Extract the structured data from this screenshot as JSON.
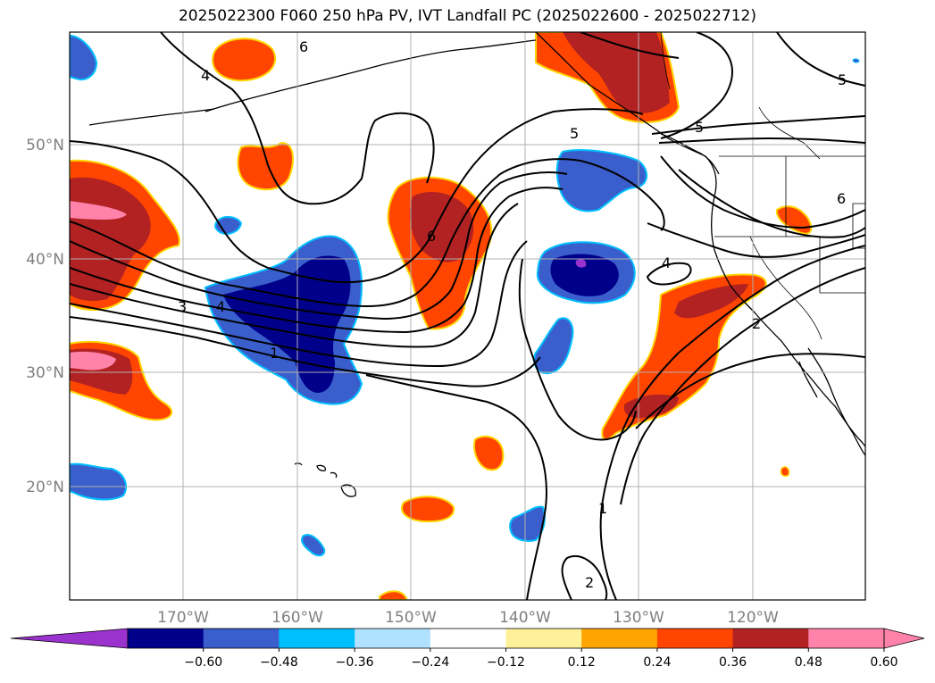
{
  "title": "2025022300 F060 250 hPa PV, IVT Landfall PC (2025022600 - 2025022712)",
  "lat_labels": [
    "50°N",
    "40°N",
    "30°N",
    "20°N"
  ],
  "lon_labels": [
    "170°W",
    "160°W",
    "150°W",
    "140°W",
    "130°W",
    "120°W"
  ],
  "colorbar": {
    "ticks": [
      "−0.60",
      "−0.48",
      "−0.36",
      "−0.24",
      "−0.12",
      "0.12",
      "0.24",
      "0.36",
      "0.48",
      "0.60"
    ],
    "colors": [
      "#9a32cd",
      "#00008b",
      "#3a5fcd",
      "#00bfff",
      "#b0e2ff",
      "#ffffff",
      "#fff09a",
      "#ffa500",
      "#ff4500",
      "#b22222",
      "#ff82ab",
      "#ff82ab"
    ]
  },
  "contour_labels": [
    "1",
    "2",
    "3",
    "4",
    "4",
    "5",
    "5",
    "5",
    "6",
    "6",
    "6",
    "1",
    "2",
    "4"
  ],
  "fill_colors": {
    "pos_light": "#ff4500",
    "pos_mid": "#b22222",
    "pos_high": "#ff82ab",
    "pos_edge": "#ffd700",
    "neg_light": "#3a5fcd",
    "neg_mid": "#00008b",
    "neg_high": "#9a32cd",
    "neg_edge": "#00bfff"
  }
}
